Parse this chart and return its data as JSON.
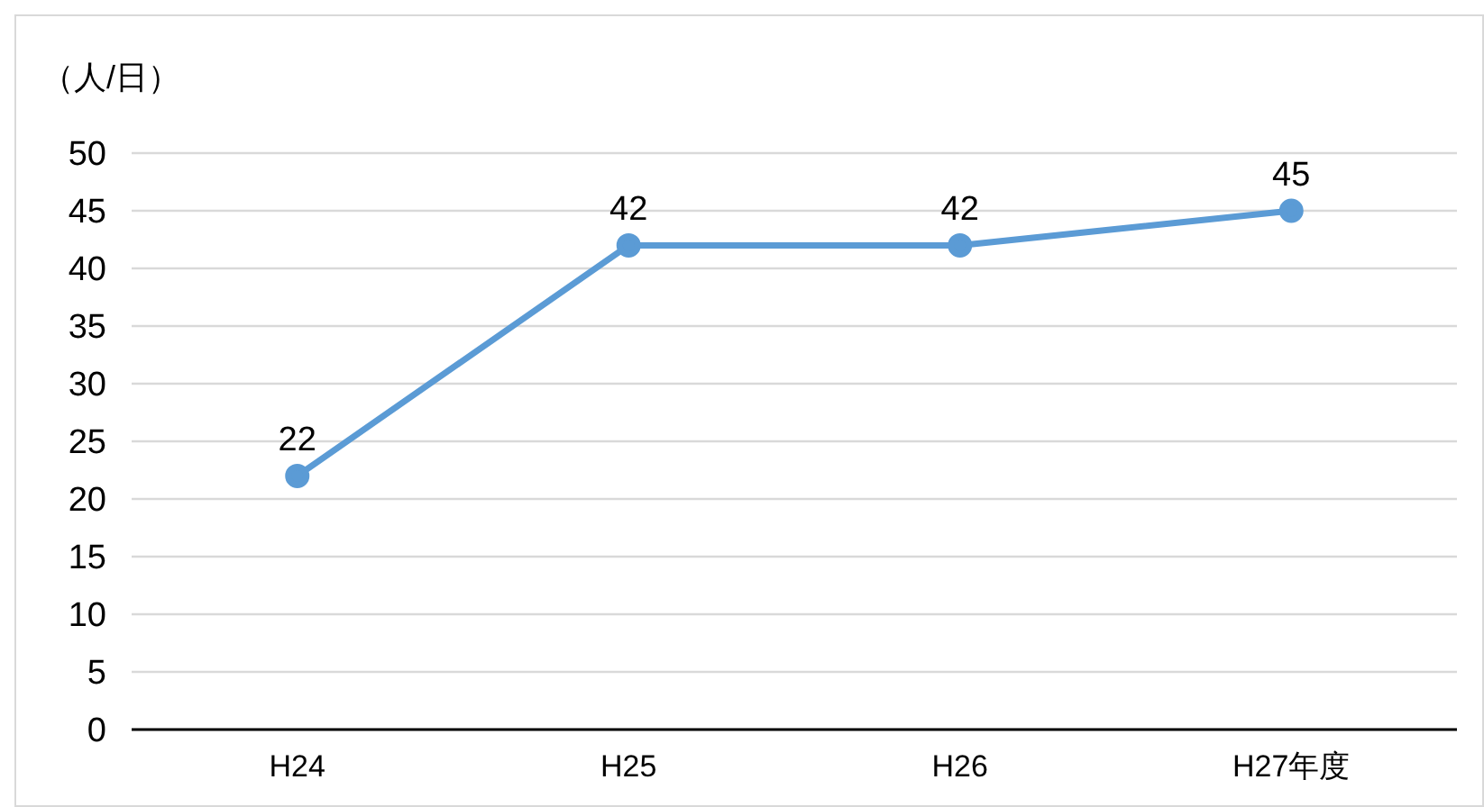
{
  "chart_data": {
    "type": "line",
    "ylabel": "（人/日）",
    "categories": [
      "H24",
      "H25",
      "H26",
      "H27年度"
    ],
    "series": [
      {
        "color": "#5b9bd5",
        "values": [
          22,
          42,
          42,
          45
        ]
      }
    ],
    "ylim": [
      0,
      50
    ],
    "yticks": [
      0,
      5,
      10,
      15,
      20,
      25,
      30,
      35,
      40,
      45,
      50
    ],
    "grid": "y",
    "marker": "circle",
    "line_style": "solid",
    "data_labels": true,
    "legend": false
  }
}
